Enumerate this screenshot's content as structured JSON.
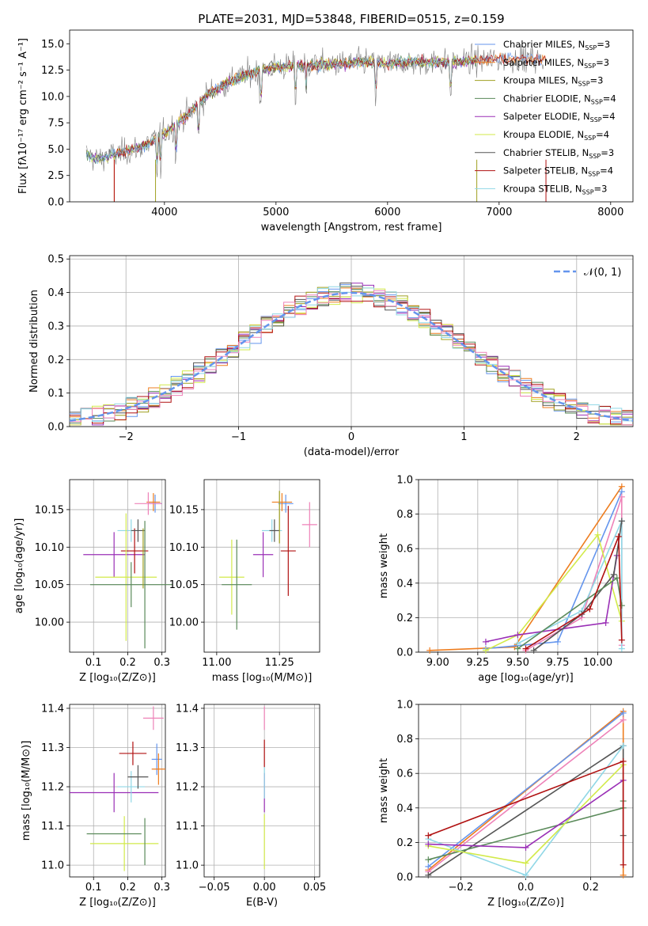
{
  "palette": [
    "#6495ed",
    "#ee7d1f",
    "#a0a020",
    "#5a8a5a",
    "#9a2fb6",
    "#d2ea4a",
    "#555555",
    "#b01010",
    "#8fd7e6"
  ],
  "extra_colors": {
    "pink": "#ee82b8",
    "gridline": "#b0b0b0",
    "spectrum_gray": "#7f7f7f"
  },
  "chart_data": [
    {
      "id": "spectrum",
      "type": "line",
      "title": "PLATE=2031, MJD=53848, FIBERID=0515, z=0.159",
      "xlabel": "wavelength [Angstrom, rest frame]",
      "ylabel": "Flux [fλ10⁻¹⁷ erg cm⁻² s⁻¹ A⁻¹]",
      "xlim": [
        3150,
        8200
      ],
      "ylim": [
        0,
        16.3
      ],
      "xticks": [
        4000,
        5000,
        6000,
        7000,
        8000
      ],
      "yticks": [
        0.0,
        2.5,
        5.0,
        7.5,
        10.0,
        12.5,
        15.0
      ],
      "legend_position": "upper-right",
      "grid": false,
      "continuum": {
        "x": [
          3300,
          3400,
          3600,
          3800,
          4000,
          4200,
          4400,
          4600,
          4800,
          5000,
          5200,
          5400,
          5600,
          5800,
          6000,
          6200,
          6400,
          6600,
          6800,
          7000,
          7200,
          7400
        ],
        "y": [
          4.5,
          4.0,
          4.6,
          5.2,
          6.5,
          8.2,
          10.3,
          11.5,
          12.3,
          12.8,
          12.9,
          13.0,
          13.1,
          13.3,
          13.1,
          13.3,
          13.2,
          13.3,
          13.4,
          13.5,
          13.6,
          13.5
        ]
      },
      "series": [
        {
          "name": "Chabrier MILES, N",
          "sub": "SSP",
          "suffix": "=3",
          "color_index": 0
        },
        {
          "name": "Salpeter MILES, N",
          "sub": "SSP",
          "suffix": "=3",
          "color_index": 1
        },
        {
          "name": "Kroupa MILES, N",
          "sub": "SSP",
          "suffix": "=3",
          "color_index": 2
        },
        {
          "name": "Chabrier ELODIE, N",
          "sub": "SSP",
          "suffix": "=4",
          "color_index": 3
        },
        {
          "name": "Salpeter ELODIE, N",
          "sub": "SSP",
          "suffix": "=4",
          "color_index": 4
        },
        {
          "name": "Kroupa ELODIE, N",
          "sub": "SSP",
          "suffix": "=4",
          "color_index": 5
        },
        {
          "name": "Chabrier STELIB, N",
          "sub": "SSP",
          "suffix": "=3",
          "color_index": 6
        },
        {
          "name": "Salpeter STELIB, N",
          "sub": "SSP",
          "suffix": "=4",
          "color_index": 7
        },
        {
          "name": "Kroupa STELIB, N",
          "sub": "SSP",
          "suffix": "=3",
          "color_index": 8
        }
      ],
      "model_ranges": [
        [
          3300,
          7400
        ],
        [
          3550,
          7420
        ],
        [
          3920,
          6800
        ],
        [
          3300,
          6800
        ],
        [
          3300,
          6800
        ],
        [
          3300,
          6800
        ],
        [
          3300,
          6800
        ],
        [
          3550,
          7420
        ],
        [
          3300,
          6800
        ]
      ]
    },
    {
      "id": "residuals",
      "type": "histogram",
      "xlabel": "(data-model)/error",
      "ylabel": "Normed distribution",
      "xlim": [
        -2.5,
        2.5
      ],
      "ylim": [
        0,
        0.51
      ],
      "xticks": [
        -2,
        -1,
        0,
        1,
        2
      ],
      "yticks": [
        0.0,
        0.1,
        0.2,
        0.3,
        0.4,
        0.5
      ],
      "grid": true,
      "gaussian_label": "𝒩(0, 1)",
      "bin_width": 0.1,
      "bin_start": -2.5
    },
    {
      "id": "age_vs_Z",
      "type": "scatter",
      "xlabel": "Z [log₁₀(Z/Z⊙)]",
      "ylabel": "age  [log₁₀(age/yr)]",
      "xlim": [
        0.03,
        0.31
      ],
      "ylim": [
        9.96,
        10.19
      ],
      "xticks": [
        0.1,
        0.2,
        0.3
      ],
      "yticks": [
        10.0,
        10.05,
        10.1,
        10.15
      ],
      "grid": true,
      "points": [
        {
          "x": 0.28,
          "y": 10.158,
          "xerr": 0.02,
          "yerr": 0.012,
          "color": "#6495ed"
        },
        {
          "x": 0.275,
          "y": 10.16,
          "xerr": 0.02,
          "yerr": 0.012,
          "color": "#ee7d1f"
        },
        {
          "x": 0.26,
          "y": 10.158,
          "xerr": 0.04,
          "yerr": 0.015,
          "color": "#ee82b8"
        },
        {
          "x": 0.16,
          "y": 10.09,
          "xerr": 0.09,
          "yerr": 0.03,
          "color": "#9a2fb6"
        },
        {
          "x": 0.22,
          "y": 10.095,
          "xerr": 0.04,
          "yerr": 0.03,
          "color": "#b01010"
        },
        {
          "x": 0.21,
          "y": 10.122,
          "xerr": 0.04,
          "yerr": 0.015,
          "color": "#8fd7e6"
        },
        {
          "x": 0.23,
          "y": 10.122,
          "xerr": 0.02,
          "yerr": 0.015,
          "color": "#555555"
        },
        {
          "x": 0.195,
          "y": 10.06,
          "xerr": 0.09,
          "yerr": 0.085,
          "color": "#d2ea4a"
        },
        {
          "x": 0.21,
          "y": 10.05,
          "xerr": 0.12,
          "yerr": 0.03,
          "color": "#5a8a5a"
        },
        {
          "x": 0.25,
          "y": 10.05,
          "xerr": 0.0,
          "yerr": 0.085,
          "color": "#5a8a5a"
        },
        {
          "x": 0.245,
          "y": 10.085,
          "xerr": 0.0,
          "yerr": 0.04,
          "color": "#a0a020"
        }
      ]
    },
    {
      "id": "age_vs_mass",
      "type": "scatter",
      "xlabel": "mass [log₁₀(M/M⊙)]",
      "ylabel": "",
      "xlim": [
        10.95,
        11.41
      ],
      "ylim": [
        9.96,
        10.19
      ],
      "xticks": [
        11.0,
        11.25
      ],
      "yticks": [
        10.0,
        10.05,
        10.1,
        10.15
      ],
      "grid": true,
      "points": [
        {
          "x": 11.275,
          "y": 10.158,
          "xerr": 0.03,
          "yerr": 0.012,
          "color": "#6495ed"
        },
        {
          "x": 11.26,
          "y": 10.16,
          "xerr": 0.04,
          "yerr": 0.012,
          "color": "#ee7d1f"
        },
        {
          "x": 11.37,
          "y": 10.13,
          "xerr": 0.03,
          "yerr": 0.03,
          "color": "#ee82b8"
        },
        {
          "x": 11.185,
          "y": 10.09,
          "xerr": 0.04,
          "yerr": 0.03,
          "color": "#9a2fb6"
        },
        {
          "x": 11.285,
          "y": 10.095,
          "xerr": 0.03,
          "yerr": 0.06,
          "color": "#b01010"
        },
        {
          "x": 11.22,
          "y": 10.122,
          "xerr": 0.04,
          "yerr": 0.015,
          "color": "#8fd7e6"
        },
        {
          "x": 11.23,
          "y": 10.122,
          "xerr": 0.02,
          "yerr": 0.015,
          "color": "#555555"
        },
        {
          "x": 11.06,
          "y": 10.06,
          "xerr": 0.05,
          "yerr": 0.05,
          "color": "#d2ea4a"
        },
        {
          "x": 11.08,
          "y": 10.05,
          "xerr": 0.06,
          "yerr": 0.06,
          "color": "#5a8a5a"
        },
        {
          "x": 11.25,
          "y": 10.14,
          "xerr": 0.0,
          "yerr": 0.035,
          "color": "#a0a020"
        }
      ]
    },
    {
      "id": "mass_weight_vs_age",
      "type": "line",
      "xlabel": "age  [log₁₀(age/yr)]",
      "ylabel": "mass weight",
      "xlim": [
        8.88,
        10.22
      ],
      "ylim": [
        0,
        1.0
      ],
      "xticks": [
        9.0,
        9.25,
        9.5,
        9.75,
        10.0
      ],
      "yticks": [
        0.0,
        0.2,
        0.4,
        0.6,
        0.8,
        1.0
      ],
      "grid": true,
      "series": [
        {
          "color": "#ee7d1f",
          "x": [
            8.95,
            9.48,
            10.15
          ],
          "y": [
            0.01,
            0.03,
            0.96
          ]
        },
        {
          "color": "#6495ed",
          "x": [
            9.3,
            9.75,
            10.15
          ],
          "y": [
            0.02,
            0.06,
            0.93
          ]
        },
        {
          "color": "#ee82b8",
          "x": [
            9.55,
            9.9,
            10.15,
            10.15
          ],
          "y": [
            0.01,
            0.2,
            0.9,
            0.04
          ]
        },
        {
          "color": "#d2ea4a",
          "x": [
            9.3,
            9.5,
            10.0,
            10.15
          ],
          "y": [
            0.01,
            0.1,
            0.68,
            0.18
          ]
        },
        {
          "color": "#8fd7e6",
          "x": [
            9.5,
            9.9,
            10.15,
            10.15
          ],
          "y": [
            0.05,
            0.24,
            0.76,
            0.02
          ]
        },
        {
          "color": "#9a2fb6",
          "x": [
            9.3,
            9.5,
            10.05,
            10.12
          ],
          "y": [
            0.06,
            0.1,
            0.17,
            0.56
          ]
        },
        {
          "color": "#555555",
          "x": [
            9.6,
            9.9,
            10.1,
            10.15
          ],
          "y": [
            0.01,
            0.22,
            0.45,
            0.76
          ]
        },
        {
          "color": "#5a8a5a",
          "x": [
            9.5,
            10.12,
            10.15
          ],
          "y": [
            0.02,
            0.43,
            0.27
          ]
        },
        {
          "color": "#b01010",
          "x": [
            9.55,
            9.95,
            10.13,
            10.15
          ],
          "y": [
            0.02,
            0.25,
            0.67,
            0.07
          ]
        }
      ]
    },
    {
      "id": "mass_vs_Z",
      "type": "scatter",
      "xlabel": "Z [log₁₀(Z/Z⊙)]",
      "ylabel": "mass [log₁₀(M/M⊙)]",
      "xlim": [
        0.03,
        0.31
      ],
      "ylim": [
        10.97,
        11.41
      ],
      "xticks": [
        0.1,
        0.2,
        0.3
      ],
      "yticks": [
        11.0,
        11.1,
        11.2,
        11.3,
        11.4
      ],
      "grid": true,
      "points": [
        {
          "x": 0.285,
          "y": 11.27,
          "xerr": 0.015,
          "yerr": 0.04,
          "color": "#6495ed"
        },
        {
          "x": 0.29,
          "y": 11.245,
          "xerr": 0.02,
          "yerr": 0.04,
          "color": "#ee7d1f"
        },
        {
          "x": 0.275,
          "y": 11.375,
          "xerr": 0.03,
          "yerr": 0.03,
          "color": "#ee82b8"
        },
        {
          "x": 0.16,
          "y": 11.185,
          "xerr": 0.13,
          "yerr": 0.05,
          "color": "#9a2fb6"
        },
        {
          "x": 0.215,
          "y": 11.285,
          "xerr": 0.04,
          "yerr": 0.03,
          "color": "#b01010"
        },
        {
          "x": 0.21,
          "y": 11.2,
          "xerr": 0.04,
          "yerr": 0.04,
          "color": "#8fd7e6"
        },
        {
          "x": 0.23,
          "y": 11.225,
          "xerr": 0.03,
          "yerr": 0.03,
          "color": "#555555"
        },
        {
          "x": 0.19,
          "y": 11.055,
          "xerr": 0.1,
          "yerr": 0.07,
          "color": "#d2ea4a"
        },
        {
          "x": 0.16,
          "y": 11.08,
          "xerr": 0.08,
          "yerr": 0.0,
          "color": "#5a8a5a"
        },
        {
          "x": 0.25,
          "y": 11.06,
          "xerr": 0.0,
          "yerr": 0.06,
          "color": "#5a8a5a"
        }
      ]
    },
    {
      "id": "mass_vs_ebv",
      "type": "scatter",
      "xlabel": "E(B-V)",
      "ylabel": "",
      "xlim": [
        -0.06,
        0.055
      ],
      "ylim": [
        10.97,
        11.41
      ],
      "xticks": [
        -0.05,
        0.0,
        0.05
      ],
      "yticks": [
        11.0,
        11.1,
        11.2,
        11.3,
        11.4
      ],
      "grid": true,
      "points": [
        {
          "x": 0.0,
          "y": 11.375,
          "xerr": 0.0,
          "yerr": 0.03,
          "color": "#ee82b8"
        },
        {
          "x": 0.0,
          "y": 11.285,
          "xerr": 0.0,
          "yerr": 0.035,
          "color": "#b01010"
        },
        {
          "x": 0.0,
          "y": 11.185,
          "xerr": 0.0,
          "yerr": 0.05,
          "color": "#9a2fb6"
        },
        {
          "x": 0.0,
          "y": 11.21,
          "xerr": 0.0,
          "yerr": 0.04,
          "color": "#8fd7e6"
        },
        {
          "x": 0.0,
          "y": 11.06,
          "xerr": 0.0,
          "yerr": 0.07,
          "color": "#d2ea4a"
        }
      ]
    },
    {
      "id": "mass_weight_vs_Z",
      "type": "line",
      "xlabel": "Z [log₁₀(Z/Z⊙)]",
      "ylabel": "mass weight",
      "xlim": [
        -0.33,
        0.33
      ],
      "ylim": [
        0,
        1.0
      ],
      "xticks": [
        -0.2,
        0.0,
        0.2
      ],
      "yticks": [
        0.0,
        0.2,
        0.4,
        0.6,
        0.8,
        1.0
      ],
      "grid": true,
      "series": [
        {
          "color": "#ee7d1f",
          "x": [
            -0.3,
            0.3,
            0.3
          ],
          "y": [
            0.04,
            0.96,
            0.01
          ]
        },
        {
          "color": "#6495ed",
          "x": [
            -0.3,
            0.3
          ],
          "y": [
            0.06,
            0.95
          ]
        },
        {
          "color": "#ee82b8",
          "x": [
            -0.3,
            0.3
          ],
          "y": [
            0.03,
            0.91
          ]
        },
        {
          "color": "#555555",
          "x": [
            -0.3,
            0.3,
            0.3
          ],
          "y": [
            0.01,
            0.76,
            0.24
          ]
        },
        {
          "color": "#5a8a5a",
          "x": [
            -0.3,
            0.3,
            0.3
          ],
          "y": [
            0.1,
            0.4,
            0.44
          ]
        },
        {
          "color": "#8fd7e6",
          "x": [
            -0.3,
            0.0,
            0.3
          ],
          "y": [
            0.22,
            0.01,
            0.76
          ]
        },
        {
          "color": "#d2ea4a",
          "x": [
            -0.3,
            0.0,
            0.3
          ],
          "y": [
            0.18,
            0.08,
            0.65
          ]
        },
        {
          "color": "#9a2fb6",
          "x": [
            -0.3,
            0.0,
            0.3
          ],
          "y": [
            0.19,
            0.17,
            0.56
          ]
        },
        {
          "color": "#b01010",
          "x": [
            -0.3,
            0.3,
            0.3
          ],
          "y": [
            0.24,
            0.67,
            0.07
          ]
        }
      ]
    }
  ]
}
